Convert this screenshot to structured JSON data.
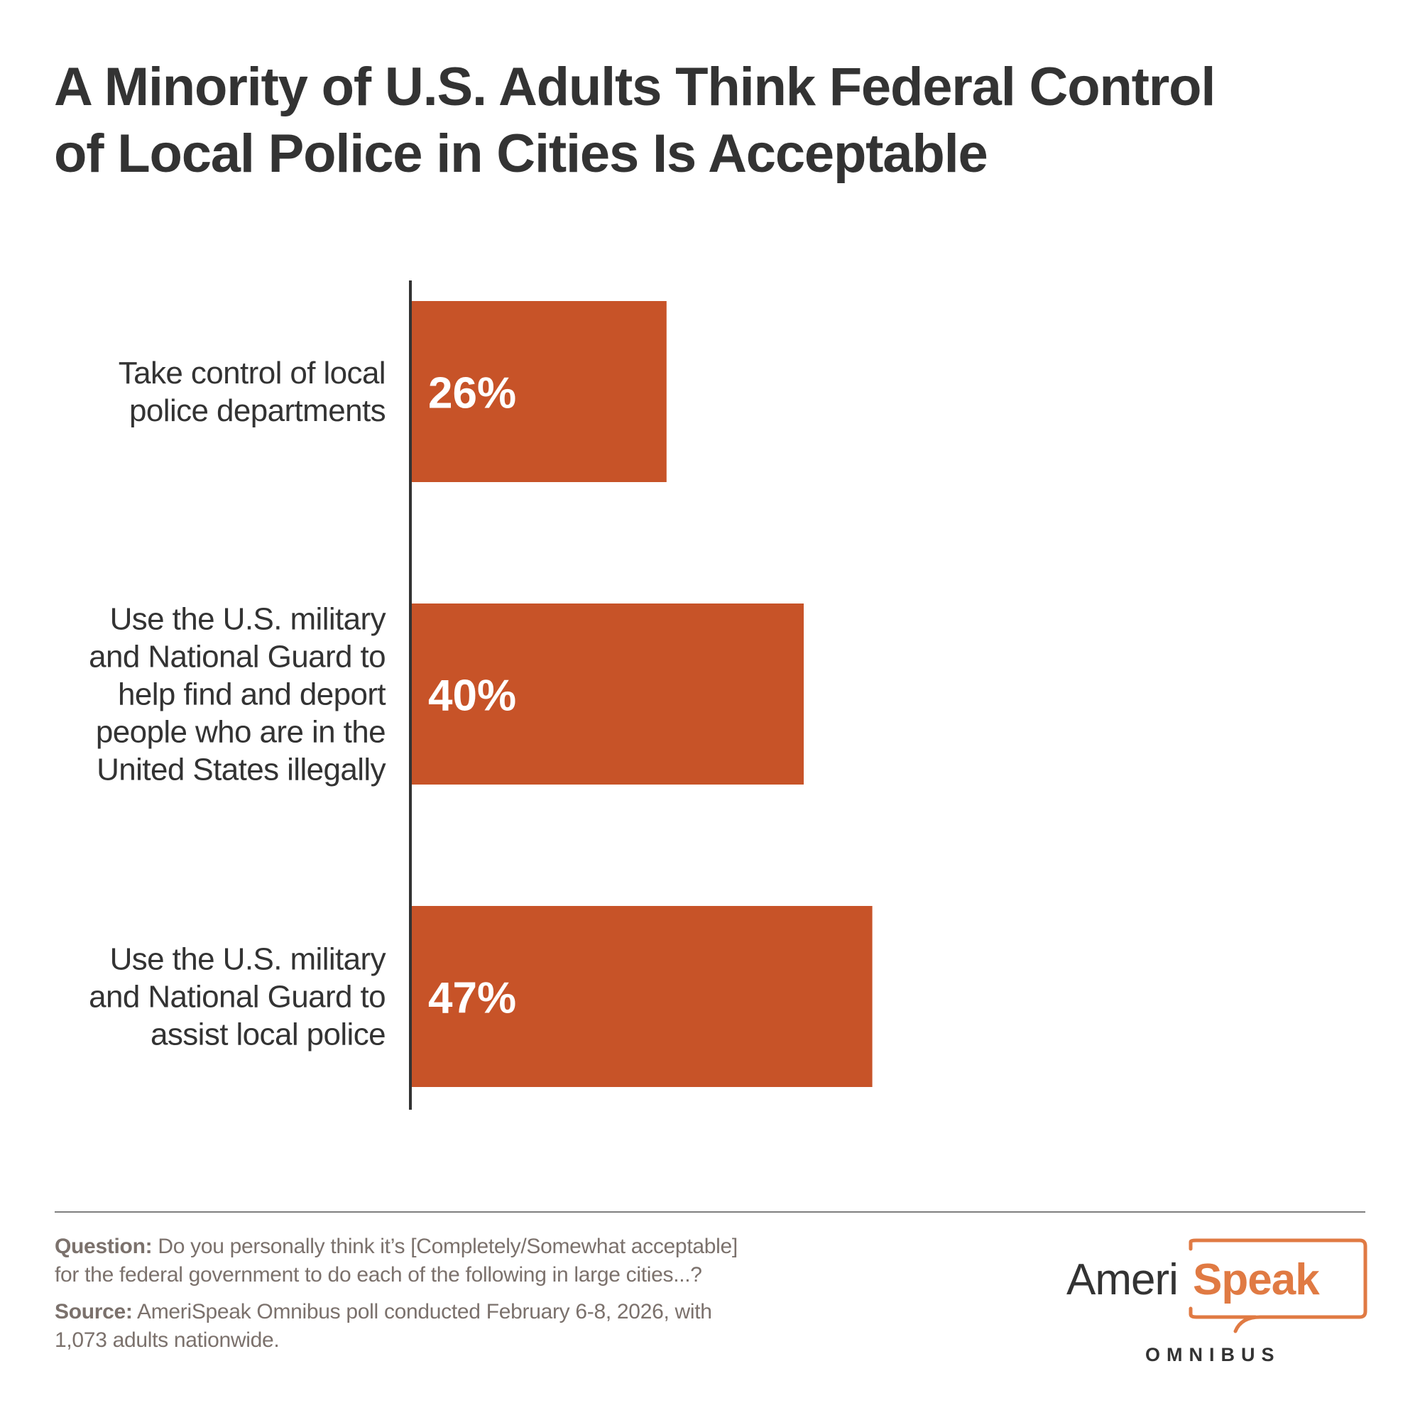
{
  "title": {
    "line1": "A Minority of U.S. Adults Think Federal Control",
    "line2": "of Local Police in Cities Is Acceptable"
  },
  "colors": {
    "bar": "#c75328",
    "text": "#333333",
    "footnote": "#7b716c",
    "brand_orange": "#e07a43"
  },
  "chart_data": {
    "type": "bar",
    "orientation": "horizontal",
    "title": "A Minority of U.S. Adults Think Federal Control of Local Police in Cities Is Acceptable",
    "xlabel": "",
    "ylabel": "",
    "xlim": [
      0,
      100
    ],
    "grid": false,
    "legend": "none",
    "unit": "%",
    "categories": [
      [
        "Take control of local",
        "police departments"
      ],
      [
        "Use the U.S. military",
        "and National Guard to",
        "help find and deport",
        "people who are in the",
        "United States illegally"
      ],
      [
        "Use the U.S. military",
        "and National Guard to",
        "assist local police"
      ]
    ],
    "values": [
      26,
      40,
      47
    ],
    "value_labels": [
      "26%",
      "40%",
      "47%"
    ]
  },
  "footer": {
    "question_label": "Question:",
    "question_text_line1": " Do you personally think it’s [Completely/Somewhat acceptable]",
    "question_text_line2": "for the federal government to do each of the following in large cities...?",
    "source_label": "Source:",
    "source_text_line1": " AmeriSpeak Omnibus poll conducted February 6-8, 2026, with",
    "source_text_line2": "1,073 adults nationwide."
  },
  "logo": {
    "part1": "Ameri",
    "part2": "Speak",
    "subtitle": "OMNIBUS"
  }
}
